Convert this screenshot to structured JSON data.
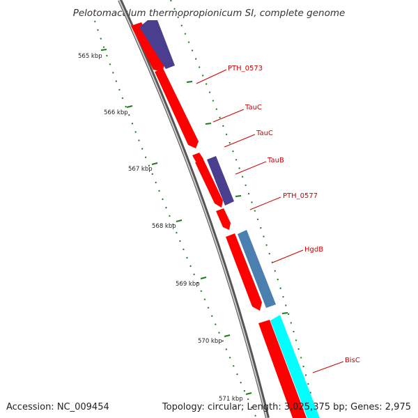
{
  "title": "Pelotomaculum thermopropionicum SI, complete genome",
  "footer": {
    "accession": "Accession: NC_009454",
    "topology": "Topology: circular; Length: 3,025,375 bp; Genes: 2,975"
  },
  "colors": {
    "backbone": "#888888",
    "forward_gene": "#ff0000",
    "reverse_gene_purple": "#4a3f8f",
    "reverse_gene_blue": "#4a7fb0",
    "reverse_gene_cyan": "#00ffff",
    "tick": "#1a7a1a",
    "label": "#cc0000"
  },
  "scale_ticks": [
    {
      "label": "565 kbp"
    },
    {
      "label": "566 kbp"
    },
    {
      "label": "567 kbp"
    },
    {
      "label": "568 kbp"
    },
    {
      "label": "569 kbp"
    },
    {
      "label": "570 kbp"
    },
    {
      "label": "571 kbp"
    }
  ],
  "gene_labels": [
    {
      "text": "PTH_0573"
    },
    {
      "text": "TauC"
    },
    {
      "text": "TauC"
    },
    {
      "text": "TauB"
    },
    {
      "text": "PTH_0577"
    },
    {
      "text": "HgdB"
    },
    {
      "text": "BisC"
    }
  ]
}
